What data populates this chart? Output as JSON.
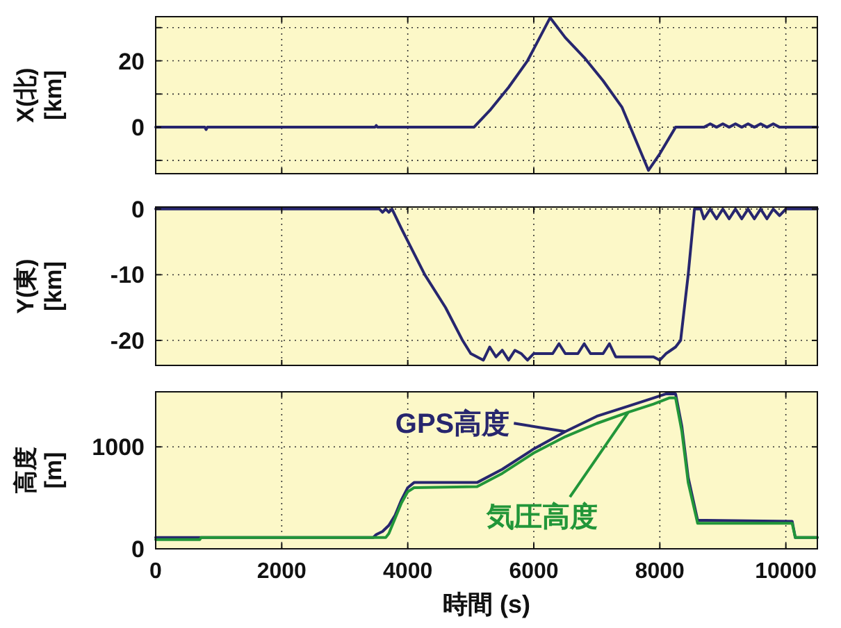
{
  "chart_data": [
    {
      "type": "line",
      "ylabel": "X(北) [km]",
      "xlim": [
        0,
        10500
      ],
      "xticks": [
        0,
        2000,
        4000,
        6000,
        8000,
        10000
      ],
      "ylim": [
        -14,
        33.3
      ],
      "yticks": [
        {
          "value": -10,
          "label": null
        },
        0,
        {
          "value": 10,
          "label": null
        },
        20,
        {
          "value": 30,
          "label": null
        }
      ],
      "grid": true,
      "tick_labels": "y",
      "line_style": "solid",
      "series": [
        {
          "color": "#27266e",
          "x": [
            0,
            780,
            800,
            820,
            3480,
            3500,
            3520,
            5050,
            5300,
            5600,
            5900,
            6260,
            6500,
            6800,
            7100,
            7400,
            7820,
            8000,
            8250,
            8700,
            8800,
            8900,
            9000,
            9100,
            9200,
            9300,
            9400,
            9500,
            9600,
            9700,
            9800,
            9900,
            10000,
            10500
          ],
          "values": [
            0,
            0,
            -0.7,
            0,
            0,
            0.5,
            0,
            0,
            5,
            12,
            20,
            33,
            27,
            21,
            14,
            6,
            -13,
            -8,
            0,
            0,
            1,
            0,
            1,
            0,
            1,
            0,
            1,
            0,
            1,
            0,
            1,
            0,
            0,
            0
          ]
        }
      ]
    },
    {
      "type": "line",
      "ylabel": "Y(東) [km]",
      "xlim": [
        0,
        10500
      ],
      "xticks": [
        0,
        2000,
        4000,
        6000,
        8000,
        10000
      ],
      "ylim": [
        -23.8,
        0.3
      ],
      "yticks": [
        -20,
        -10,
        0
      ],
      "grid": true,
      "tick_labels": "y",
      "line_style": "solid",
      "series": [
        {
          "color": "#27266e",
          "x": [
            0,
            3550,
            3600,
            3650,
            3700,
            3750,
            3900,
            4270,
            4600,
            4870,
            5000,
            5200,
            5300,
            5400,
            5500,
            5600,
            5700,
            5800,
            5900,
            6000,
            6300,
            6400,
            6500,
            6700,
            6800,
            6900,
            7100,
            7200,
            7300,
            7900,
            8000,
            8100,
            8250,
            8330,
            8450,
            8550,
            8650,
            8700,
            8800,
            8900,
            9000,
            9100,
            9200,
            9300,
            9400,
            9500,
            9600,
            9700,
            9800,
            9900,
            10000,
            10500
          ],
          "values": [
            0,
            0,
            -0.5,
            0,
            -0.5,
            0,
            -3,
            -10,
            -15,
            -20,
            -22,
            -23,
            -21,
            -22.5,
            -21.5,
            -23,
            -21.5,
            -22,
            -23,
            -22,
            -22,
            -20.5,
            -22,
            -22,
            -20.5,
            -22,
            -22,
            -20.5,
            -22.5,
            -22.5,
            -23,
            -22,
            -21,
            -20,
            -10,
            0,
            0,
            -1.5,
            0,
            -1.5,
            0,
            -1.5,
            0,
            -1.5,
            0,
            -1.5,
            0,
            -1.5,
            0,
            -1,
            0,
            0
          ]
        }
      ]
    },
    {
      "type": "line",
      "ylabel": "高度 [m]",
      "xlabel": "時間 (s)",
      "xlim": [
        0,
        10500
      ],
      "xticks": [
        0,
        2000,
        4000,
        6000,
        8000,
        10000
      ],
      "ylim": [
        0,
        1540
      ],
      "yticks": [
        0,
        1000
      ],
      "grid": true,
      "legend": "top",
      "line_style": "solid",
      "series": [
        {
          "name": "GPS高度",
          "color": "#27266e",
          "x": [
            0,
            3450,
            3500,
            3600,
            3700,
            3800,
            3900,
            4000,
            4100,
            5100,
            5500,
            6000,
            6500,
            7000,
            7500,
            7900,
            8100,
            8250,
            8350,
            8450,
            8600,
            10100,
            10150,
            10500
          ],
          "values": [
            110,
            110,
            140,
            170,
            230,
            330,
            480,
            600,
            650,
            650,
            780,
            980,
            1150,
            1300,
            1400,
            1480,
            1520,
            1520,
            1200,
            700,
            280,
            270,
            110,
            110
          ]
        },
        {
          "name": "気圧高度",
          "color": "#229639",
          "x": [
            0,
            700,
            720,
            3650,
            3700,
            3800,
            3900,
            4000,
            4100,
            5100,
            5500,
            6000,
            6500,
            7000,
            7500,
            7900,
            8150,
            8250,
            8350,
            8450,
            8600,
            10100,
            10150,
            10500
          ],
          "values": [
            90,
            90,
            110,
            110,
            150,
            300,
            450,
            560,
            600,
            610,
            740,
            940,
            1100,
            1230,
            1340,
            1420,
            1480,
            1480,
            1150,
            650,
            250,
            250,
            110,
            110
          ]
        }
      ]
    }
  ]
}
